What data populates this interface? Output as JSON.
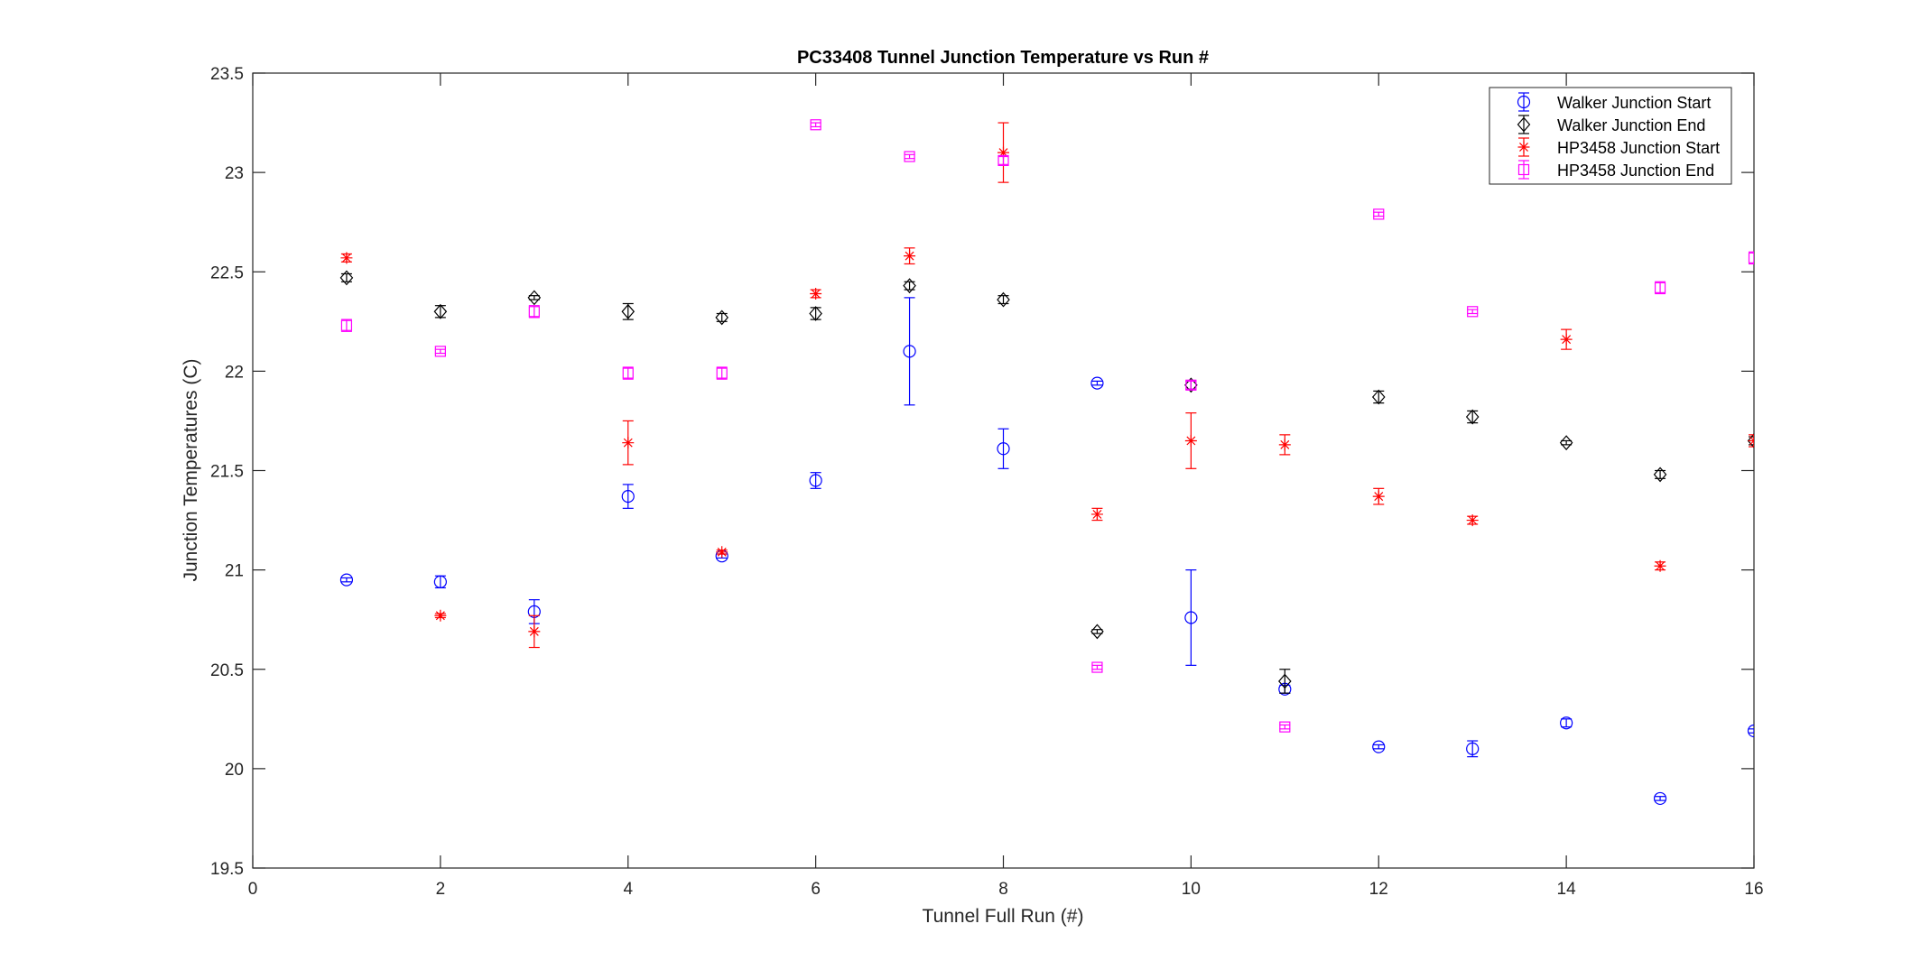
{
  "chart_data": {
    "type": "scatter",
    "title": "PC33408 Tunnel Junction Temperature vs Run #",
    "xlabel": "Tunnel Full Run (#)",
    "ylabel": "Junction Temperatures (C)",
    "xlim": [
      0,
      16
    ],
    "ylim": [
      19.5,
      23.5
    ],
    "xticks": [
      0,
      2,
      4,
      6,
      8,
      10,
      12,
      14,
      16
    ],
    "yticks": [
      19.5,
      20,
      20.5,
      21,
      21.5,
      22,
      22.5,
      23,
      23.5
    ],
    "ytick_labels": [
      "19.5",
      "20",
      "20.5",
      "21",
      "21.5",
      "22",
      "22.5",
      "23",
      "23.5"
    ],
    "grid": false,
    "legend_position": "top-right",
    "x": [
      1,
      2,
      3,
      4,
      5,
      6,
      7,
      8,
      9,
      10,
      11,
      12,
      13,
      14,
      15,
      16
    ],
    "series": [
      {
        "name": "Walker Junction Start",
        "color": "#0000ff",
        "marker": "circle",
        "values": [
          20.95,
          20.94,
          20.79,
          21.37,
          21.07,
          21.45,
          22.1,
          21.61,
          21.94,
          20.76,
          20.4,
          20.11,
          20.1,
          20.23,
          19.85,
          20.19
        ],
        "errors": [
          0.01,
          0.03,
          0.06,
          0.06,
          0.01,
          0.04,
          0.27,
          0.1,
          0.01,
          0.24,
          0.02,
          0.01,
          0.04,
          0.02,
          0.01,
          0.01
        ]
      },
      {
        "name": "Walker Junction End",
        "color": "#000000",
        "marker": "diamond",
        "values": [
          22.47,
          22.3,
          22.37,
          22.3,
          22.27,
          22.29,
          22.43,
          22.36,
          20.69,
          21.93,
          20.44,
          21.87,
          21.77,
          21.64,
          21.48,
          21.65
        ],
        "errors": [
          0.02,
          0.03,
          0.01,
          0.04,
          0.02,
          0.03,
          0.02,
          0.02,
          0.01,
          0.02,
          0.06,
          0.03,
          0.03,
          0.01,
          0.02,
          0.02
        ]
      },
      {
        "name": "HP3458 Junction Start",
        "color": "#ff0000",
        "marker": "asterisk",
        "values": [
          22.57,
          20.77,
          20.69,
          21.64,
          21.09,
          22.39,
          22.58,
          23.1,
          21.28,
          21.65,
          21.63,
          21.37,
          21.25,
          22.16,
          21.02,
          21.65
        ],
        "errors": [
          0.02,
          0.01,
          0.08,
          0.11,
          0.01,
          0.02,
          0.04,
          0.15,
          0.03,
          0.14,
          0.05,
          0.04,
          0.02,
          0.05,
          0.02,
          0.03
        ]
      },
      {
        "name": "HP3458 Junction End",
        "color": "#ff00ff",
        "marker": "square",
        "values": [
          22.23,
          22.1,
          22.3,
          21.99,
          21.99,
          23.24,
          23.08,
          23.06,
          20.51,
          21.93,
          20.21,
          22.79,
          22.3,
          null,
          22.42,
          22.57
        ],
        "errors": [
          0.03,
          0.01,
          0.03,
          0.03,
          0.03,
          0.01,
          0.01,
          0.02,
          0.01,
          0.02,
          0.01,
          0.01,
          0.01,
          null,
          0.03,
          0.03
        ]
      }
    ]
  }
}
